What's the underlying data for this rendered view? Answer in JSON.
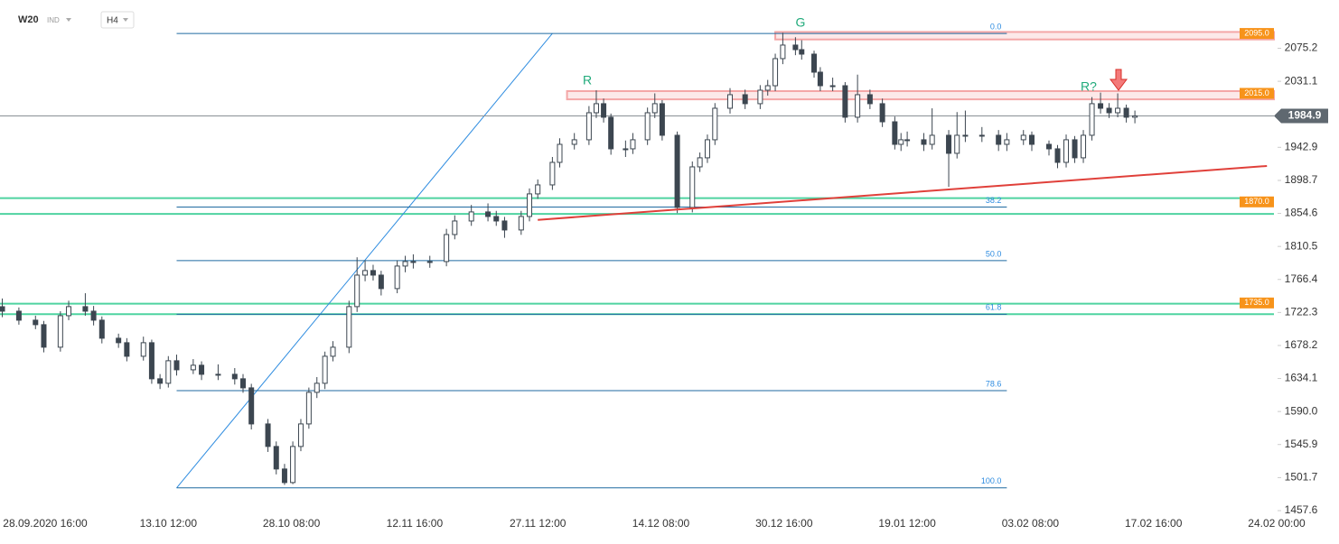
{
  "header": {
    "symbol": "W20",
    "market": "IND",
    "interval": "H4"
  },
  "chart_data": {
    "type": "candlestick",
    "ylim": [
      1457.6,
      2139.7
    ],
    "yticks": [
      2075.2,
      2031.1,
      1942.9,
      1898.7,
      1854.6,
      1810.5,
      1766.4,
      1722.3,
      1678.2,
      1634.1,
      {
        "value": 1590,
        "label": "1590.0"
      },
      1545.9,
      1501.7,
      1457.6
    ],
    "xticks": [
      "28.09.2020 16:00",
      "13.10 12:00",
      "28.10 08:00",
      "12.11 16:00",
      "27.11 12:00",
      "14.12 08:00",
      "30.12 16:00",
      "19.01 12:00",
      "03.02 08:00",
      "17.02 16:00",
      "24.02 00:00"
    ],
    "up_color": "#ffffff",
    "down_color": "#3c4650",
    "candles": [
      [
        "23.09",
        1730,
        1741,
        1716,
        1724.0
      ],
      [
        "25.09",
        1724.0,
        1729,
        1706,
        1712.0
      ],
      [
        "27.09",
        1712.0,
        1718,
        1700,
        1706.0
      ],
      [
        "28.09",
        1706.0,
        1711,
        1669,
        1675.9
      ],
      [
        "30.09",
        1675.9,
        1724,
        1670,
        1718.0
      ],
      [
        "01.10",
        1718.0,
        1738,
        1712,
        1730.1
      ],
      [
        "03.10",
        1730.1,
        1748,
        1718,
        1724.0
      ],
      [
        "04.10",
        1724.0,
        1731,
        1705,
        1712.0
      ],
      [
        "05.10",
        1712.0,
        1717,
        1681,
        1687.9
      ],
      [
        "07.10",
        1687.9,
        1694,
        1675,
        1681.9
      ],
      [
        "08.10",
        1681.9,
        1688,
        1657,
        1663.8
      ],
      [
        "10.10",
        1663.8,
        1690,
        1658,
        1681.9
      ],
      [
        "11.10",
        1681.9,
        1686,
        1627,
        1633.7
      ],
      [
        "12.10",
        1633.7,
        1640,
        1620,
        1627.7
      ],
      [
        "13.10",
        1627.7,
        1664,
        1622,
        1657.8
      ],
      [
        "14.10",
        1657.8,
        1666,
        1638,
        1645.7
      ],
      [
        "16.10",
        1645.7,
        1660,
        1640,
        1651.8
      ],
      [
        "17.10",
        1651.8,
        1657,
        1632,
        1639.7
      ],
      [
        "19.10",
        1639.7,
        1653,
        1632,
        1639.7
      ],
      [
        "21.10",
        1639.7,
        1648,
        1626,
        1633.7
      ],
      [
        "22.10",
        1633.7,
        1640,
        1615,
        1621.6
      ],
      [
        "23.10",
        1621.6,
        1627,
        1566,
        1573.4
      ],
      [
        "25.10",
        1573.4,
        1580,
        1536,
        1543.3
      ],
      [
        "26.10",
        1543.3,
        1550,
        1506,
        1513.2
      ],
      [
        "27.10",
        1513.2,
        1520,
        1492,
        1495.1
      ],
      [
        "28.10",
        1495.1,
        1550,
        1493,
        1543.3
      ],
      [
        "29.10",
        1543.3,
        1580,
        1537,
        1573.4
      ],
      [
        "30.10",
        1573.4,
        1622,
        1567,
        1615.6
      ],
      [
        "31.10",
        1615.6,
        1636,
        1608,
        1627.7
      ],
      [
        "01.11",
        1627.7,
        1670,
        1620,
        1663.8
      ],
      [
        "02.11",
        1663.8,
        1684,
        1657,
        1675.9
      ],
      [
        "04.11",
        1675.9,
        1738,
        1668,
        1730.1
      ],
      [
        "05.11",
        1730.1,
        1796,
        1723,
        1772.2
      ],
      [
        "06.11",
        1772.2,
        1792,
        1764,
        1778.3
      ],
      [
        "07.11",
        1778.3,
        1786,
        1765,
        1772.2
      ],
      [
        "08.11",
        1772.2,
        1778,
        1745,
        1754.2
      ],
      [
        "10.11",
        1754.2,
        1792,
        1748,
        1784.3
      ],
      [
        "11.11",
        1784.3,
        1798,
        1776,
        1790.3
      ],
      [
        "12.11",
        1790.3,
        1800,
        1781,
        1790.3
      ],
      [
        "14.11",
        1790.3,
        1798,
        1782,
        1790.3
      ],
      [
        "16.11",
        1790.3,
        1834,
        1784,
        1826.4
      ],
      [
        "17.11",
        1826.4,
        1852,
        1820,
        1844.5
      ],
      [
        "19.11",
        1844.5,
        1866,
        1838,
        1856.6
      ],
      [
        "21.11",
        1856.6,
        1868,
        1844,
        1850.5
      ],
      [
        "22.11",
        1850.5,
        1858,
        1838,
        1844.5
      ],
      [
        "23.11",
        1844.5,
        1850,
        1822,
        1832.5
      ],
      [
        "25.11",
        1832.5,
        1858,
        1826,
        1850.5
      ],
      [
        "26.11",
        1850.5,
        1888,
        1844,
        1880.7
      ],
      [
        "27.11",
        1880.7,
        1900,
        1874,
        1892.7
      ],
      [
        "29.11",
        1892.7,
        1930,
        1886,
        1922.8
      ],
      [
        "30.11",
        1922.8,
        1955,
        1916,
        1946.9
      ],
      [
        "02.12",
        1946.9,
        1962,
        1940,
        1953.0
      ],
      [
        "04.12",
        1953.0,
        1998,
        1946,
        1989.1
      ],
      [
        "05.12",
        1989.1,
        2019,
        1982,
        2001.2
      ],
      [
        "06.12",
        2001.2,
        2008,
        1976,
        1983.1
      ],
      [
        "07.12",
        1983.1,
        1988,
        1933,
        1940.9
      ],
      [
        "09.12",
        1940.9,
        1952,
        1930,
        1940.9
      ],
      [
        "10.12",
        1940.9,
        1962,
        1934,
        1953.0
      ],
      [
        "12.12",
        1953.0,
        1996,
        1946,
        1989.1
      ],
      [
        "13.12",
        1989.1,
        2015,
        1982,
        2001.2
      ],
      [
        "14.12",
        2001.2,
        2006,
        1952,
        1959.0
      ],
      [
        "16.12",
        1959.0,
        1964,
        1855,
        1862.6
      ],
      [
        "18.12",
        1862.6,
        1924,
        1856,
        1916.8
      ],
      [
        "19.12",
        1916.8,
        1936,
        1910,
        1928.9
      ],
      [
        "20.12",
        1928.9,
        1960,
        1922,
        1953.0
      ],
      [
        "21.12",
        1953.0,
        2002,
        1946,
        1995.1
      ],
      [
        "23.12",
        1995.1,
        2022,
        1988,
        2013.2
      ],
      [
        "25.12",
        2013.2,
        2020,
        1994,
        2001.2
      ],
      [
        "27.12",
        2001.2,
        2026,
        1994,
        2019.2
      ],
      [
        "28.12",
        2019.2,
        2033,
        2012,
        2025.2
      ],
      [
        "29.12",
        2025.2,
        2068,
        2018,
        2061.4
      ],
      [
        "30.12",
        2061.4,
        2096,
        2054,
        2079.5
      ],
      [
        "01.01",
        2079.5,
        2090,
        2066,
        2073.4
      ],
      [
        "02.01",
        2073.4,
        2086,
        2060,
        2067.4
      ],
      [
        "04.01",
        2067.4,
        2072,
        2036,
        2043.3
      ],
      [
        "05.01",
        2043.3,
        2050,
        2018,
        2025.2
      ],
      [
        "07.01",
        2025.2,
        2036,
        2018,
        2025.2
      ],
      [
        "09.01",
        2025.2,
        2030,
        1976,
        1983.1
      ],
      [
        "11.01",
        1983.1,
        2040,
        1976,
        2013.2
      ],
      [
        "13.01",
        2013.2,
        2020,
        1994,
        2001.2
      ],
      [
        "15.01",
        2001.2,
        2008,
        1970,
        1977.0
      ],
      [
        "17.01",
        1977.0,
        1984,
        1940,
        1946.9
      ],
      [
        "18.01",
        1946.9,
        1962,
        1938,
        1953.0
      ],
      [
        "19.01",
        1953.0,
        1964,
        1944,
        1953.0
      ],
      [
        "21.01",
        1953.0,
        1962,
        1938,
        1946.9
      ],
      [
        "22.01",
        1946.9,
        1995,
        1940,
        1959.0
      ],
      [
        "24.01",
        1959.0,
        1966,
        1890,
        1934.9
      ],
      [
        "25.01",
        1934.9,
        1990,
        1928,
        1959.0
      ],
      [
        "26.01",
        1959.0,
        1992,
        1950,
        1959.0
      ],
      [
        "28.01",
        1959.0,
        1970,
        1950,
        1959.0
      ],
      [
        "30.01",
        1959.0,
        1966,
        1938,
        1946.9
      ],
      [
        "31.01",
        1946.9,
        1962,
        1938,
        1953.0
      ],
      [
        "02.02",
        1953.0,
        1966,
        1946,
        1959.0
      ],
      [
        "03.02",
        1959.0,
        1964,
        1938,
        1946.9
      ],
      [
        "05.02",
        1946.9,
        1952,
        1932,
        1940.9
      ],
      [
        "06.02",
        1940.9,
        1946,
        1915,
        1922.8
      ],
      [
        "07.02",
        1922.8,
        1960,
        1916,
        1953.0
      ],
      [
        "08.02",
        1953.0,
        1958,
        1922,
        1928.9
      ],
      [
        "09.02",
        1928.9,
        1966,
        1922,
        1959.0
      ],
      [
        "10.02",
        1959.0,
        2010,
        1952,
        2001.2
      ],
      [
        "11.02",
        2001.2,
        2016,
        1988,
        1995.1
      ],
      [
        "12.02",
        1995.1,
        2002,
        1982,
        1989.1
      ],
      [
        "13.02",
        1989.1,
        2015,
        1983,
        1995.1
      ],
      [
        "14.02",
        1995.1,
        2000,
        1976,
        1983.1
      ],
      [
        "15.02",
        1983.1,
        1992,
        1975,
        1984.9
      ]
    ],
    "last": 1984.9,
    "zones": [
      {
        "value": 2095,
        "label": "2095.0",
        "low": 2087,
        "high": 2097,
        "from": "29.12",
        "color": "#f4a6a6"
      },
      {
        "value": 2015,
        "label": "2015.0",
        "low": 2007,
        "high": 2018,
        "from": "01.12",
        "color": "#f4a6a6"
      },
      {
        "value": 1870,
        "label": "1870.0",
        "low": 1854,
        "high": 1875,
        "color": "#4fd3a0"
      },
      {
        "value": 1735,
        "label": "1735.0",
        "low": 1720,
        "high": 1734,
        "color": "#4fd3a0"
      }
    ],
    "tag_color": "#f7931a",
    "fib": {
      "high": 2095,
      "low": 1488,
      "low_x": "14.10",
      "high_x": "29.11",
      "end_x": "31.01",
      "levels": [
        {
          "value": 0,
          "label": "0.0"
        },
        38.2,
        {
          "value": 50,
          "label": "50.0"
        },
        61.8,
        78.6,
        {
          "value": 100,
          "label": "100.0"
        }
      ]
    },
    "trend": {
      "x": [
        "27.11",
        "23.02"
      ],
      "values": [
        1846,
        1918
      ],
      "color": "#e0403a"
    },
    "annotations": {
      "r1": "R",
      "g": "G",
      "r2": "R?"
    }
  }
}
